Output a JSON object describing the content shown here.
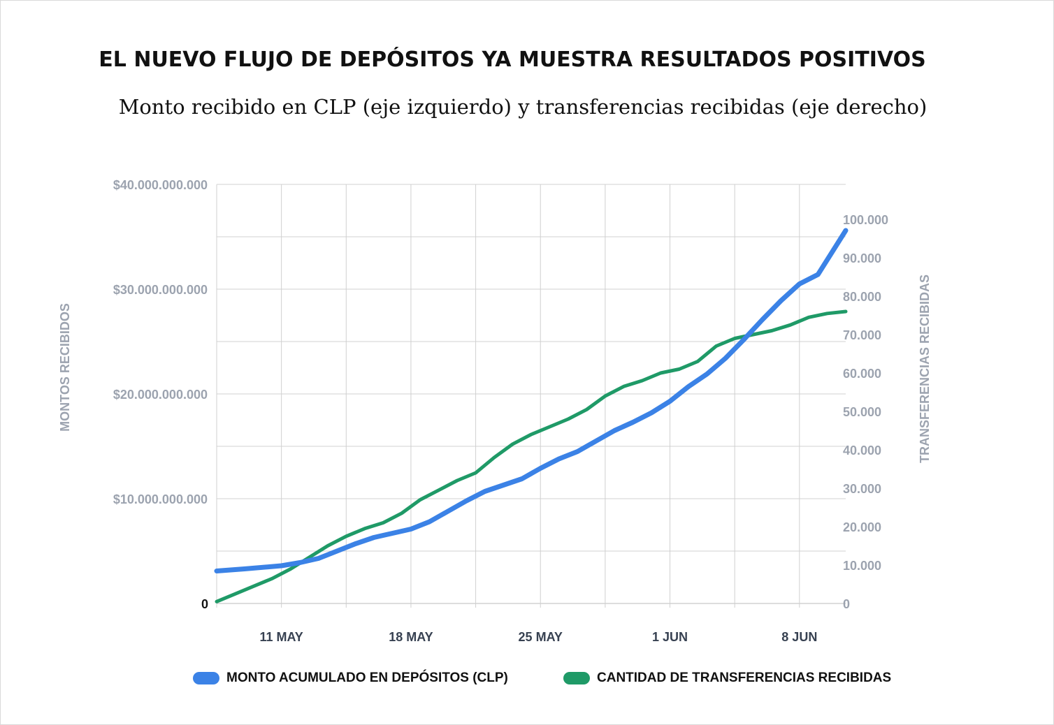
{
  "title": "EL NUEVO FLUJO DE DEPÓSITOS YA MUESTRA RESULTADOS POSITIVOS",
  "subtitle": "Monto recibido en CLP (eje izquierdo) y transferencias recibidas (eje derecho)",
  "colors": {
    "series_monto": "#3b82e6",
    "series_transferencias": "#1f9a67",
    "grid": "#d0d0d0",
    "axis_text": "#9ca3af",
    "zero_text": "#111111"
  },
  "chart_data": {
    "type": "line",
    "title": "EL NUEVO FLUJO DE DEPÓSITOS YA MUESTRA RESULTADOS POSITIVOS",
    "subtitle": "Monto recibido en CLP (eje izquierdo) y transferencias recibidas (eje derecho)",
    "x_tick_labels": [
      "11 MAY",
      "18 MAY",
      "25 MAY",
      "1 JUN",
      "8 JUN"
    ],
    "x_ticks_day": [
      11,
      18,
      25,
      32,
      39
    ],
    "xlim_day": [
      7.5,
      41.5
    ],
    "y_left": {
      "label": "MONTOS RECIBIDOS",
      "ylim": [
        0,
        40000000000
      ],
      "ticks": [
        {
          "value": 0,
          "label": "0"
        },
        {
          "value": 10000000000,
          "label": "$10.000.000.000"
        },
        {
          "value": 20000000000,
          "label": "$20.000.000.000"
        },
        {
          "value": 30000000000,
          "label": "$30.000.000.000"
        },
        {
          "value": 40000000000,
          "label": "$40.000.000.000"
        }
      ]
    },
    "y_right": {
      "label": "TRANSFERENCIAS RECIBIDAS",
      "ylim": [
        0,
        110000
      ],
      "ticks": [
        {
          "value": 0,
          "label": "0"
        },
        {
          "value": 10000,
          "label": "10.000"
        },
        {
          "value": 20000,
          "label": "20.000"
        },
        {
          "value": 30000,
          "label": "30.000"
        },
        {
          "value": 40000,
          "label": "40.000"
        },
        {
          "value": 50000,
          "label": "50.000"
        },
        {
          "value": 60000,
          "label": "60.000"
        },
        {
          "value": 70000,
          "label": "70.000"
        },
        {
          "value": 80000,
          "label": "80.000"
        },
        {
          "value": 90000,
          "label": "90.000"
        },
        {
          "value": 100000,
          "label": "100.000"
        }
      ]
    },
    "grid": true,
    "legend_position": "bottom",
    "series": [
      {
        "name": "MONTO ACUMULADO EN DEPÓSITOS (CLP)",
        "axis": "left",
        "x_day": [
          7.5,
          9,
          11,
          12,
          13,
          14,
          15,
          16,
          17,
          18,
          19,
          20,
          21,
          22,
          23,
          24,
          25,
          26,
          27,
          28,
          29,
          30,
          31,
          32,
          33,
          34,
          35,
          36,
          37,
          38,
          39,
          40,
          41,
          41.5
        ],
        "values": [
          3100000000,
          3300000000,
          3600000000,
          3900000000,
          4300000000,
          5000000000,
          5700000000,
          6300000000,
          6700000000,
          7100000000,
          7800000000,
          8800000000,
          9800000000,
          10700000000,
          11300000000,
          11900000000,
          12900000000,
          13800000000,
          14500000000,
          15500000000,
          16500000000,
          17300000000,
          18200000000,
          19300000000,
          20700000000,
          21900000000,
          23400000000,
          25200000000,
          27100000000,
          28900000000,
          30500000000,
          31400000000,
          34200000000,
          35600000000
        ]
      },
      {
        "name": "CANTIDAD DE TRANSFERENCIAS RECIBIDAS",
        "axis": "right",
        "x_day": [
          7.5,
          8.5,
          9.5,
          10.5,
          11.5,
          12.5,
          13.5,
          14.5,
          15.5,
          16.5,
          17.5,
          18.5,
          19.5,
          20.5,
          21.5,
          22.5,
          23.5,
          24.5,
          25.5,
          26.5,
          27.5,
          28.5,
          29.5,
          30.5,
          31.5,
          32.5,
          33.5,
          34.5,
          35.5,
          36.5,
          37.5,
          38.5,
          39.5,
          40.5,
          41.5
        ],
        "values": [
          500,
          2500,
          4500,
          6500,
          9000,
          12000,
          15000,
          17500,
          19500,
          21000,
          23500,
          27000,
          29500,
          32000,
          34000,
          38000,
          41500,
          44000,
          46000,
          48000,
          50500,
          54000,
          56500,
          58000,
          60000,
          61000,
          63000,
          67000,
          69000,
          70000,
          71000,
          72500,
          74500,
          75500,
          76000
        ]
      }
    ]
  },
  "legend": {
    "items": [
      {
        "label": "MONTO ACUMULADO EN DEPÓSITOS (CLP)",
        "color": "#3b82e6"
      },
      {
        "label": "CANTIDAD DE TRANSFERENCIAS RECIBIDAS",
        "color": "#1f9a67"
      }
    ]
  }
}
